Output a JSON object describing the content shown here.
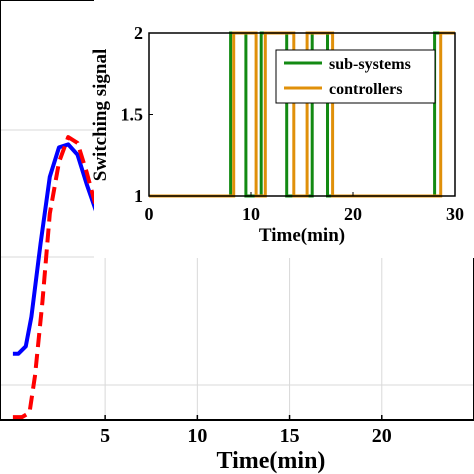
{
  "chart_data": [
    {
      "type": "line",
      "xlabel": "Time(min)",
      "ylabel": "",
      "xlim": [
        -0.7,
        25
      ],
      "ylim": [
        -0.9,
        1.95
      ],
      "x_ticks": [
        5,
        10,
        15,
        20
      ],
      "x_tick_labels": [
        "5",
        "10",
        "15",
        "20"
      ],
      "grid": true,
      "series": [
        {
          "color": "#0000ff",
          "style": "solid",
          "x": [
            0,
            0.3,
            0.7,
            1.0,
            1.5,
            2.0,
            2.5,
            3.0,
            3.5,
            4.0,
            4.5,
            5.0,
            5.5,
            6.0,
            6.5,
            7.0,
            7.5,
            8.0,
            8.5,
            9.0,
            10.0,
            11.0,
            12.0,
            13.0,
            15.0,
            20.0,
            25.0
          ],
          "y": [
            -0.45,
            -0.45,
            -0.4,
            -0.2,
            0.3,
            0.75,
            0.95,
            0.97,
            0.9,
            0.7,
            0.52,
            0.42,
            0.42,
            0.47,
            0.55,
            0.58,
            0.56,
            0.53,
            0.51,
            0.5,
            0.51,
            0.5,
            0.5,
            0.5,
            0.5,
            0.5,
            0.5
          ]
        },
        {
          "color": "#ff0000",
          "style": "dashed",
          "x": [
            0,
            0.5,
            0.9,
            1.2,
            1.6,
            2.0,
            2.5,
            3.0,
            3.5,
            4.0,
            4.5,
            5.0,
            5.5,
            6.0,
            6.5,
            7.0,
            7.5,
            8.0,
            8.5,
            9.0,
            10.0,
            11.0,
            12.0,
            13.0,
            15.0,
            20.0,
            25.0
          ],
          "y": [
            -0.88,
            -0.88,
            -0.85,
            -0.6,
            -0.1,
            0.5,
            0.85,
            1.02,
            0.98,
            0.78,
            0.55,
            0.4,
            0.37,
            0.43,
            0.55,
            0.6,
            0.57,
            0.52,
            0.49,
            0.48,
            0.5,
            0.51,
            0.5,
            0.5,
            0.5,
            0.5,
            0.5
          ]
        }
      ]
    },
    {
      "type": "line",
      "xlabel": "Time(min)",
      "ylabel": "Switching signal",
      "xlim": [
        0,
        30
      ],
      "ylim": [
        1,
        2
      ],
      "x_ticks": [
        0,
        10,
        20,
        30
      ],
      "x_tick_labels": [
        "0",
        "10",
        "20",
        "30"
      ],
      "y_ticks": [
        1,
        1.5,
        2
      ],
      "y_tick_labels": [
        "1",
        "1.5",
        "2"
      ],
      "grid": false,
      "legend_position": "top-right",
      "series": [
        {
          "name": "sub-systems",
          "color": "#138a13",
          "points": [
            [
              0,
              1
            ],
            [
              8,
              1
            ],
            [
              8,
              2
            ],
            [
              9.5,
              2
            ],
            [
              9.5,
              1
            ],
            [
              11,
              1
            ],
            [
              11,
              2
            ],
            [
              13.5,
              2
            ],
            [
              13.5,
              1
            ],
            [
              16,
              1
            ],
            [
              16,
              2
            ],
            [
              17.5,
              2
            ],
            [
              17.5,
              1
            ],
            [
              28,
              1
            ],
            [
              28,
              2
            ],
            [
              30,
              2
            ]
          ]
        },
        {
          "name": "controllers",
          "color": "#e0900a",
          "points": [
            [
              0,
              1
            ],
            [
              8.3,
              1
            ],
            [
              8.3,
              2
            ],
            [
              10.5,
              2
            ],
            [
              10.5,
              1
            ],
            [
              11.4,
              1
            ],
            [
              11.4,
              2
            ],
            [
              14.2,
              2
            ],
            [
              14.2,
              1
            ],
            [
              15.5,
              1
            ],
            [
              15.5,
              2
            ],
            [
              18,
              2
            ],
            [
              18,
              1
            ],
            [
              28.6,
              1
            ],
            [
              28.6,
              2
            ],
            [
              30,
              2
            ]
          ]
        }
      ]
    }
  ]
}
